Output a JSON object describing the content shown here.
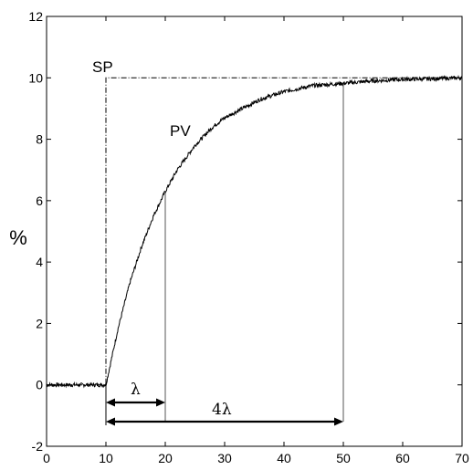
{
  "chart_data": {
    "type": "line",
    "title": "",
    "xlabel": "",
    "ylabel": "%",
    "xlim": [
      0,
      70
    ],
    "ylim": [
      -2,
      12
    ],
    "x_ticks": [
      "0",
      "10",
      "20",
      "30",
      "40",
      "50",
      "60",
      "70"
    ],
    "y_ticks": [
      "-2",
      "0",
      "2",
      "4",
      "6",
      "8",
      "10",
      "12"
    ],
    "grid": false,
    "legend": "none",
    "series": [
      {
        "name": "SP",
        "style": "dash-dot",
        "x": [
          0,
          10,
          10,
          50,
          70
        ],
        "y": [
          0,
          0,
          10,
          10,
          10
        ]
      },
      {
        "name": "PV",
        "style": "solid noisy",
        "x": [
          0,
          10,
          12,
          14,
          16,
          18,
          20,
          22,
          25,
          28,
          30,
          33,
          36,
          40,
          45,
          50,
          55,
          60,
          65,
          70
        ],
        "y": [
          0,
          0,
          1.8,
          3.3,
          4.5,
          5.5,
          6.3,
          7.0,
          7.8,
          8.4,
          8.7,
          9.0,
          9.3,
          9.55,
          9.75,
          9.82,
          9.9,
          9.95,
          9.97,
          10.0
        ]
      }
    ],
    "annotations": {
      "sp_label": "SP",
      "pv_label": "PV",
      "lambda_label": "λ",
      "four_lambda_label": "4λ",
      "markers_x": [
        20,
        50
      ],
      "lambda_span": [
        10,
        20
      ],
      "four_lambda_span": [
        10,
        50
      ]
    }
  },
  "colors": {
    "line": "#000000",
    "markers": "#555555",
    "background": "#ffffff"
  }
}
